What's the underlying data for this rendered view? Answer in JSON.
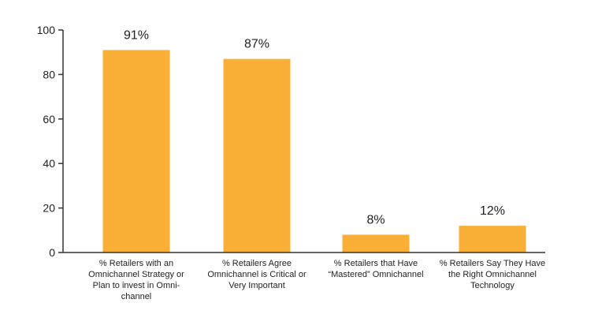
{
  "chart_data": {
    "type": "bar",
    "categories": [
      [
        "% Retailers with an",
        "Omnichannel Strategy or",
        "Plan to invest in Omni-",
        "channel"
      ],
      [
        "% Retailers Agree",
        "Omnichannel is Critical or",
        "Very Important"
      ],
      [
        "% Retailers that Have",
        "“Mastered” Omnichannel"
      ],
      [
        "% Retailers Say They Have",
        "the Right Omnichannel",
        "Technology"
      ]
    ],
    "values": [
      91,
      87,
      8,
      12
    ],
    "data_labels": [
      "91%",
      "87%",
      "8%",
      "12%"
    ],
    "yticks": [
      "0",
      "20",
      "40",
      "60",
      "80",
      "100"
    ],
    "ytick_values": [
      0,
      20,
      40,
      60,
      80,
      100
    ],
    "ylim": [
      0,
      100
    ],
    "grid": false,
    "title": "",
    "xlabel": "",
    "ylabel": "",
    "colors": {
      "bar": "#F9AE36",
      "axis": "#333333"
    }
  }
}
